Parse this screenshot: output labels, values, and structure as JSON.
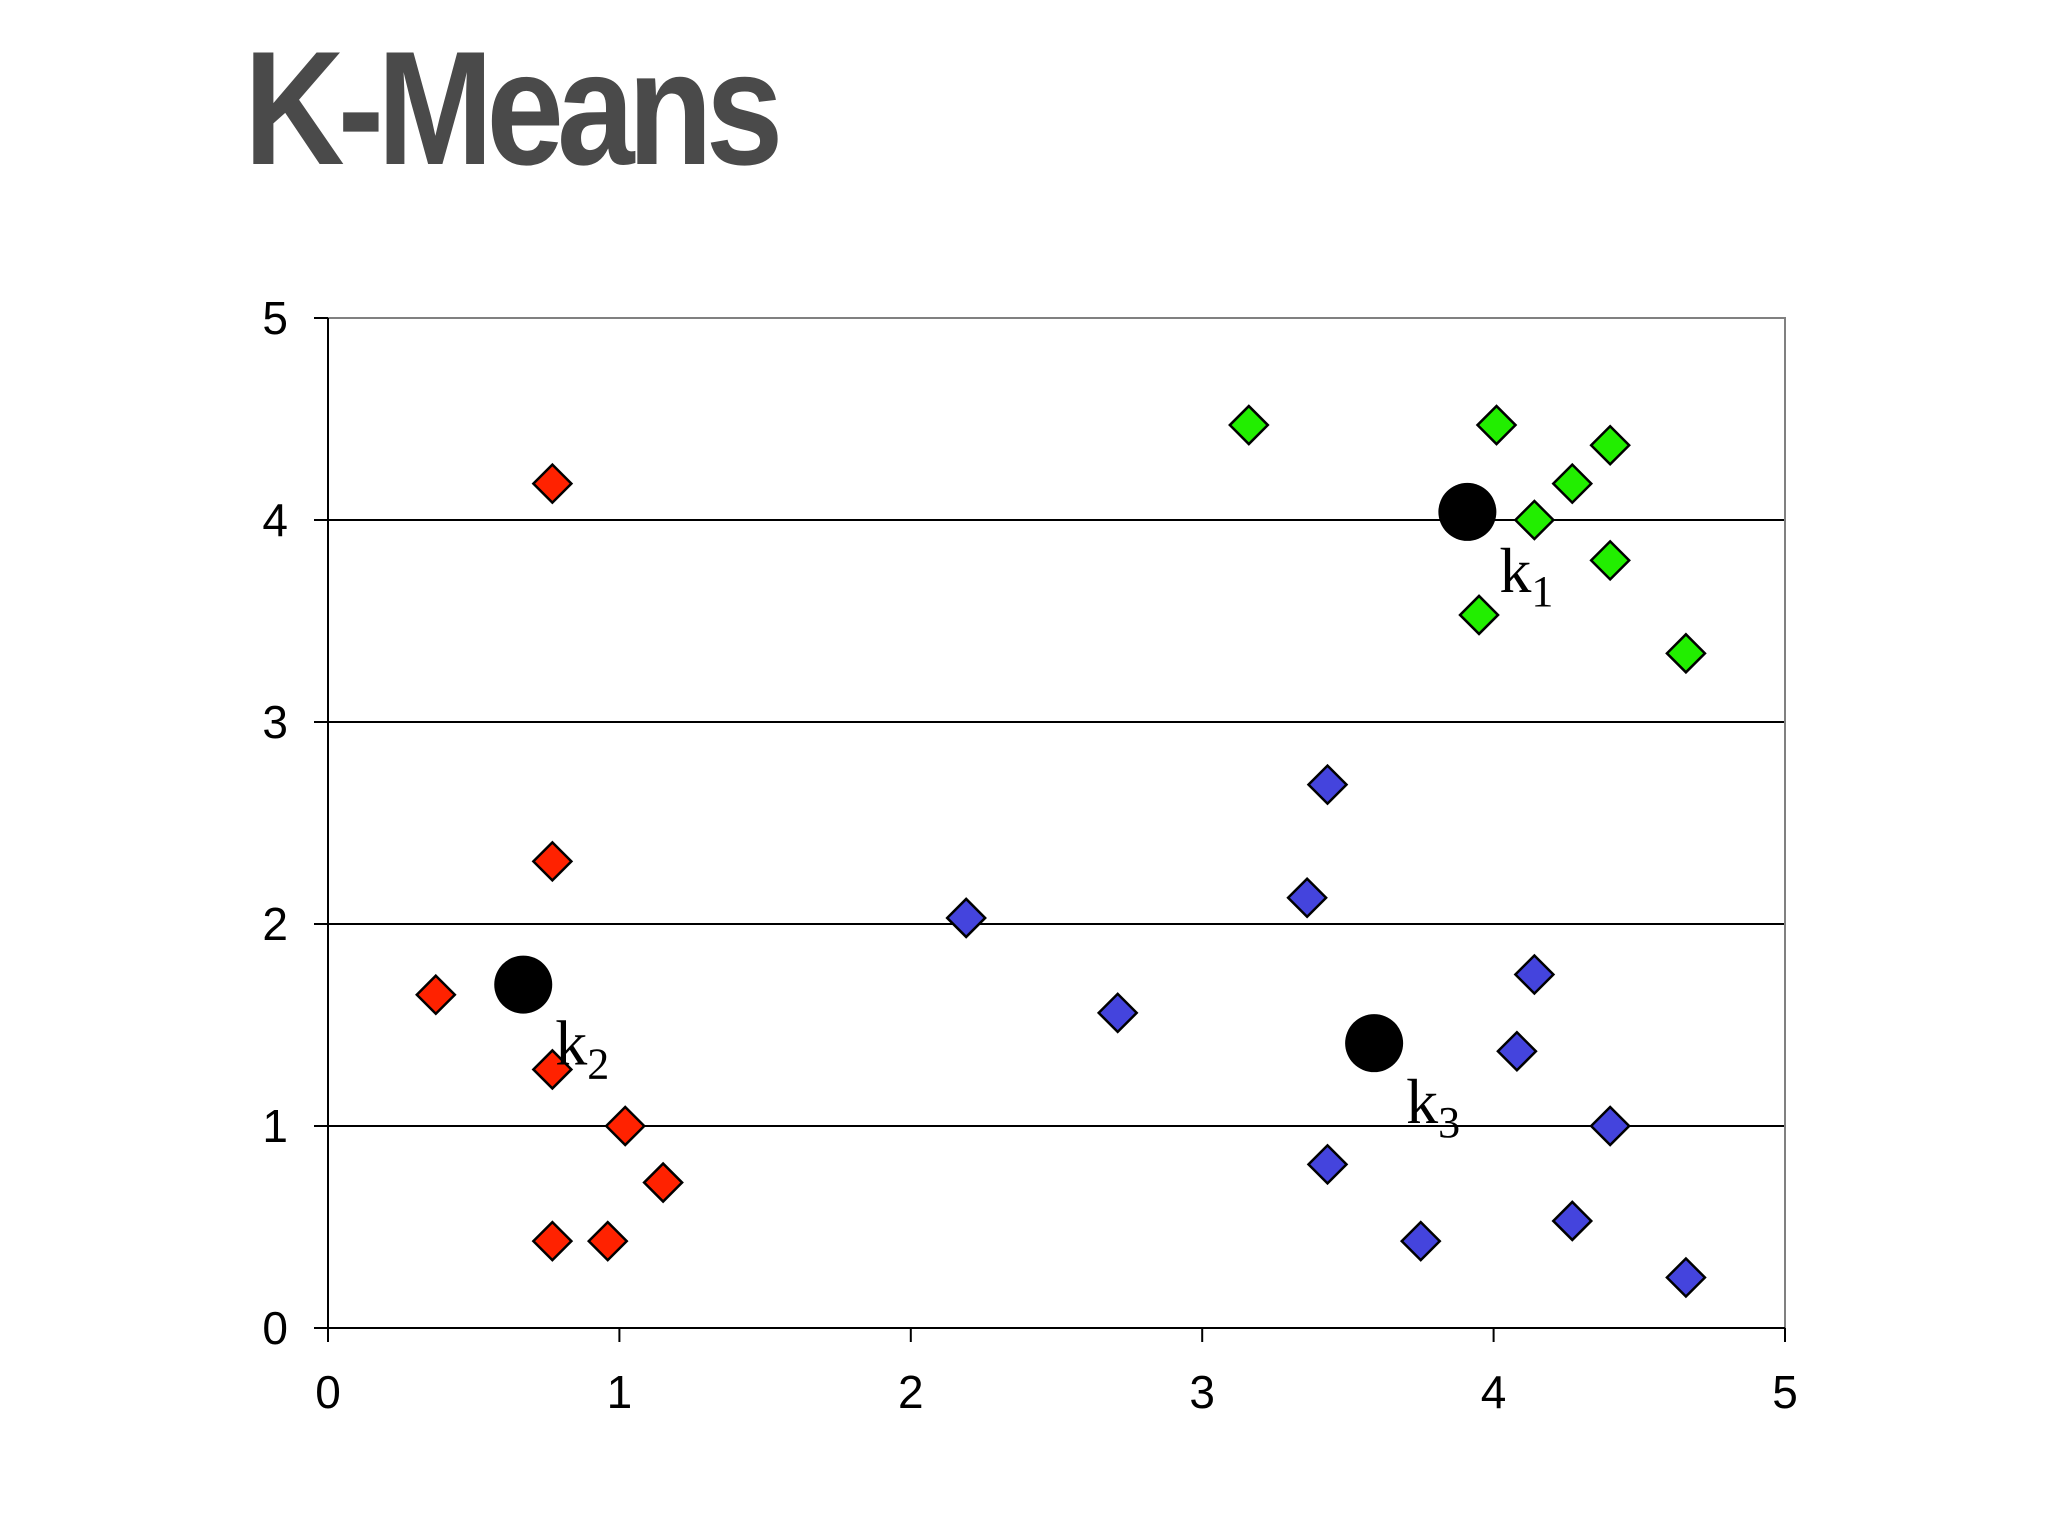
{
  "title": "K-Means",
  "chart_data": {
    "type": "scatter",
    "title": "K-Means",
    "xlabel": "",
    "ylabel": "",
    "xlim": [
      0,
      5
    ],
    "ylim": [
      0,
      5
    ],
    "x_ticks": [
      0,
      1,
      2,
      3,
      4,
      5
    ],
    "y_ticks": [
      0,
      1,
      2,
      3,
      4,
      5
    ],
    "grid": "horizontal",
    "legend": "none",
    "series": [
      {
        "color": "#ff2200",
        "marker": "diamond",
        "points": [
          [
            0.77,
            4.18
          ],
          [
            0.77,
            2.31
          ],
          [
            0.37,
            1.65
          ],
          [
            0.77,
            1.28
          ],
          [
            1.02,
            1.0
          ],
          [
            1.15,
            0.72
          ],
          [
            0.77,
            0.43
          ],
          [
            0.96,
            0.43
          ]
        ]
      },
      {
        "color": "#22ee00",
        "marker": "diamond",
        "points": [
          [
            3.16,
            4.47
          ],
          [
            4.01,
            4.47
          ],
          [
            4.4,
            4.37
          ],
          [
            4.27,
            4.18
          ],
          [
            4.14,
            4.0
          ],
          [
            4.4,
            3.8
          ],
          [
            3.95,
            3.53
          ],
          [
            4.66,
            3.34
          ]
        ]
      },
      {
        "color": "#4444dd",
        "marker": "diamond",
        "points": [
          [
            3.43,
            2.69
          ],
          [
            3.36,
            2.13
          ],
          [
            2.19,
            2.03
          ],
          [
            2.71,
            1.56
          ],
          [
            4.14,
            1.75
          ],
          [
            4.08,
            1.37
          ],
          [
            4.4,
            1.0
          ],
          [
            3.43,
            0.81
          ],
          [
            3.75,
            0.43
          ],
          [
            4.27,
            0.53
          ],
          [
            4.66,
            0.25
          ]
        ]
      }
    ],
    "centroids": [
      {
        "label": "k",
        "sub": "1",
        "x": 3.91,
        "y": 4.04
      },
      {
        "label": "k",
        "sub": "2",
        "x": 0.67,
        "y": 1.7
      },
      {
        "label": "k",
        "sub": "3",
        "x": 3.59,
        "y": 1.41
      }
    ]
  }
}
